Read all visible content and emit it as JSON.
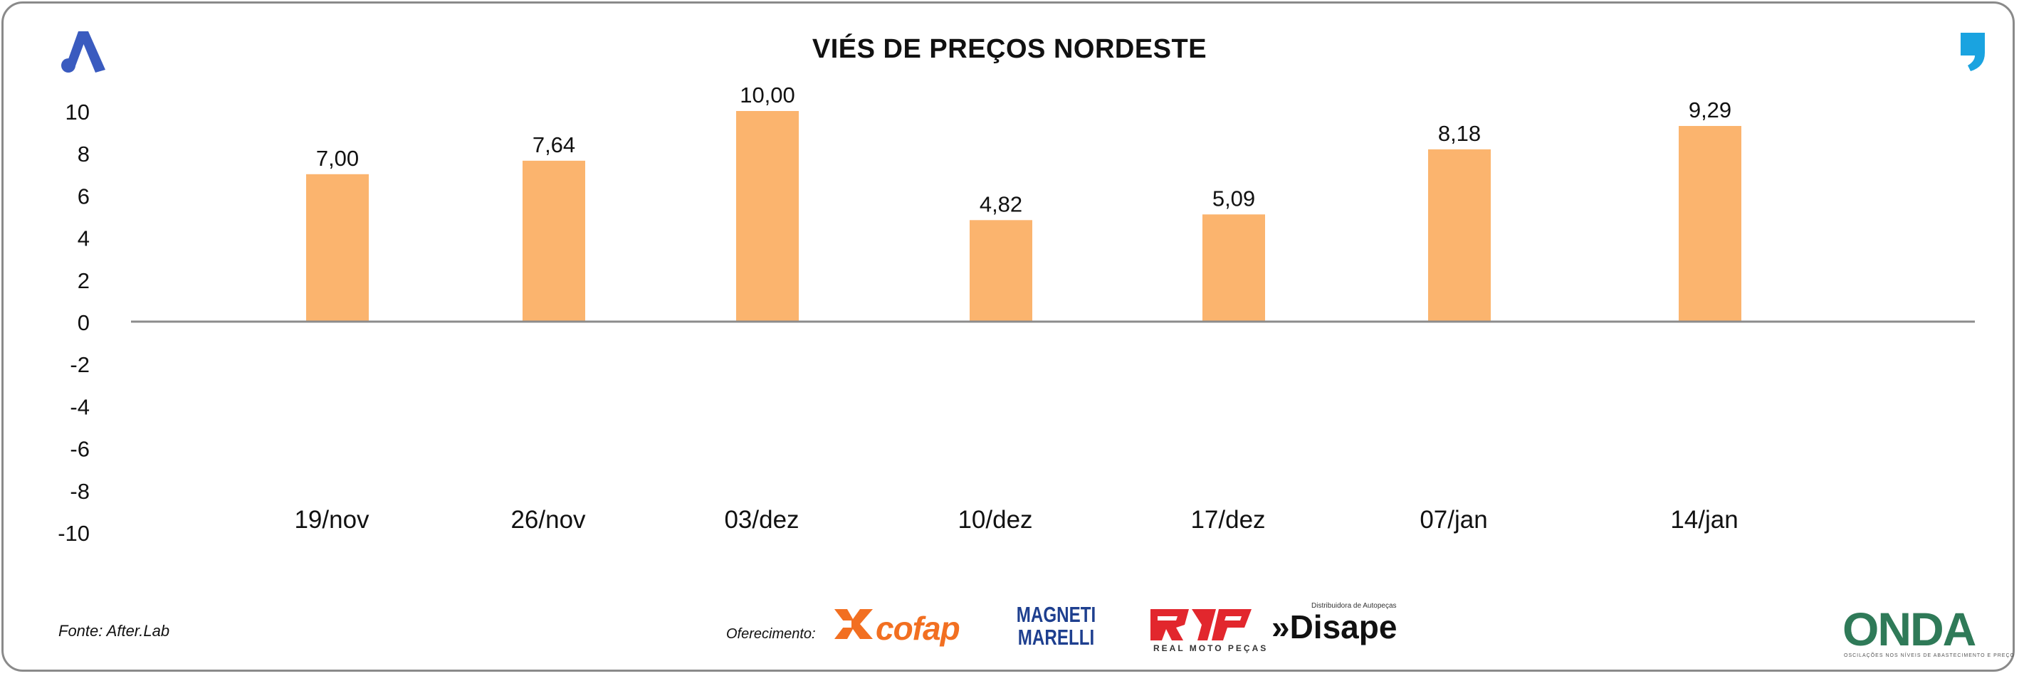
{
  "title": "VIÉS DE PREÇOS NORDESTE",
  "source": "Fonte: After.Lab",
  "sponsor_label": "Oferecimento:",
  "sponsors": {
    "cofap": "cofap",
    "magneti_line1": "MAGNETI",
    "magneti_line2": "MARELLI",
    "rmp": "RMP",
    "rmp_sub": "REAL MOTO PEÇAS",
    "disape": "»Disape",
    "disape_sub": "Distribuidora de Autopeças",
    "onda": "ONDA",
    "onda_sub": "OSCILAÇÕES NOS NÍVEIS DE ABASTECIMENTO E PREÇO"
  },
  "icons": [
    "brand-a-logo-icon",
    "quote-logo-icon"
  ],
  "colors": {
    "bar": "#FBB46E",
    "axis": "#8c8c8c",
    "text": "#111111",
    "cofap": "#f26f21",
    "magneti": "#1e3f8f",
    "rmp": "#e2272d",
    "brand_blue": "#3a5bbf",
    "quote_blue": "#1aa3e0"
  },
  "chart_data": {
    "type": "bar",
    "title": "VIÉS DE PREÇOS NORDESTE",
    "xlabel": "",
    "ylabel": "",
    "categories": [
      "19/nov",
      "26/nov",
      "03/dez",
      "10/dez",
      "17/dez",
      "07/jan",
      "14/jan"
    ],
    "values": [
      7.0,
      7.64,
      10.0,
      4.82,
      5.09,
      8.18,
      9.29
    ],
    "value_labels": [
      "7,00",
      "7,64",
      "10,00",
      "4,82",
      "5,09",
      "8,18",
      "9,29"
    ],
    "ylim": [
      -10,
      10
    ],
    "yticks": [
      "10",
      "8",
      "6",
      "4",
      "2",
      "0",
      "-2",
      "-4",
      "-6",
      "-8",
      "-10"
    ],
    "grid": false,
    "legend": "none"
  }
}
